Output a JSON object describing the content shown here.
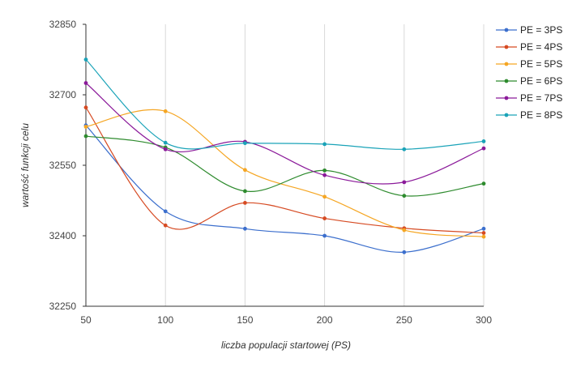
{
  "chart_data": {
    "type": "line",
    "xlabel": "liczba populacji startowej (PS)",
    "ylabel": "wartość funkcji celu",
    "x": [
      50,
      100,
      150,
      200,
      250,
      300
    ],
    "x_tick_labels": [
      "50",
      "100",
      "150",
      "200",
      "250",
      "300"
    ],
    "ylim": [
      32250,
      32850
    ],
    "y_ticks": [
      32250,
      32400,
      32550,
      32700,
      32850
    ],
    "y_tick_labels": [
      "32250",
      "32400",
      "32550",
      "32700",
      "32850"
    ],
    "grid": "vertical",
    "legend_position": "right",
    "series": [
      {
        "name": "PE = 3PS",
        "color": "#3c6fcd",
        "values": [
          32635,
          32452,
          32415,
          32400,
          32365,
          32415
        ]
      },
      {
        "name": "PE = 4PS",
        "color": "#d64a22",
        "values": [
          32673,
          32422,
          32470,
          32437,
          32416,
          32406
        ]
      },
      {
        "name": "PE = 5PS",
        "color": "#f5a623",
        "values": [
          32632,
          32665,
          32540,
          32483,
          32412,
          32398
        ]
      },
      {
        "name": "PE = 6PS",
        "color": "#2e8b2e",
        "values": [
          32612,
          32588,
          32495,
          32539,
          32485,
          32511
        ]
      },
      {
        "name": "PE = 7PS",
        "color": "#8b1a9a",
        "values": [
          32725,
          32584,
          32600,
          32529,
          32514,
          32586
        ]
      },
      {
        "name": "PE = 8PS",
        "color": "#1aa3b8",
        "values": [
          32775,
          32598,
          32597,
          32595,
          32584,
          32601
        ]
      }
    ]
  }
}
